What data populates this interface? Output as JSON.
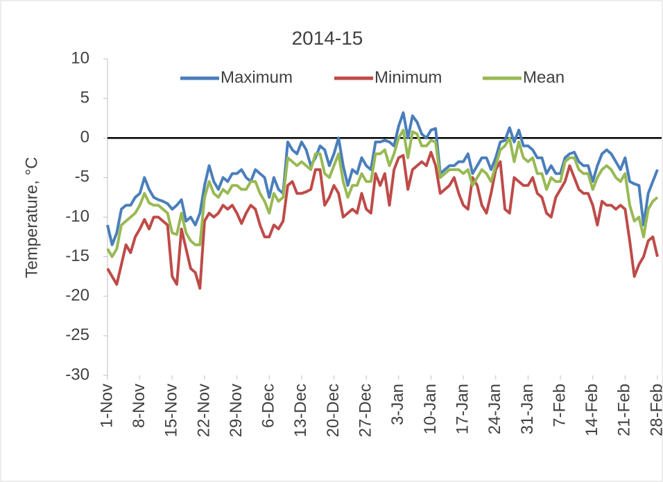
{
  "chart_data": {
    "type": "line",
    "title": "2014-15",
    "y_label": "Temperature, °C",
    "categories": [
      "1-Nov",
      null,
      null,
      null,
      null,
      null,
      null,
      "8-Nov",
      null,
      null,
      null,
      null,
      null,
      null,
      "15-Nov",
      null,
      null,
      null,
      null,
      null,
      null,
      "22-Nov",
      null,
      null,
      null,
      null,
      null,
      null,
      "29-Nov",
      null,
      null,
      null,
      null,
      null,
      null,
      "6-Dec",
      null,
      null,
      null,
      null,
      null,
      null,
      "13-Dec",
      null,
      null,
      null,
      null,
      null,
      null,
      "20-Dec",
      null,
      null,
      null,
      null,
      null,
      null,
      "27-Dec",
      null,
      null,
      null,
      null,
      null,
      null,
      "3-Jan",
      null,
      null,
      null,
      null,
      null,
      null,
      "10-Jan",
      null,
      null,
      null,
      null,
      null,
      null,
      "17-Jan",
      null,
      null,
      null,
      null,
      null,
      null,
      "24-Jan",
      null,
      null,
      null,
      null,
      null,
      null,
      "31-Jan",
      null,
      null,
      null,
      null,
      null,
      null,
      "7-Feb",
      null,
      null,
      null,
      null,
      null,
      null,
      "14-Feb",
      null,
      null,
      null,
      null,
      null,
      null,
      "21-Feb",
      null,
      null,
      null,
      null,
      null,
      null,
      "28-Feb"
    ],
    "series": [
      {
        "name": "Maximum",
        "color": "#4a7ebb",
        "values": [
          -11,
          -13.5,
          -12,
          -9,
          -8.5,
          -8.5,
          -7.5,
          -7,
          -5,
          -6.5,
          -7.5,
          -7.8,
          -8,
          -8.3,
          -9,
          -8.5,
          -7.8,
          -10.5,
          -10,
          -11,
          -9.5,
          -6,
          -3.5,
          -5.5,
          -6.5,
          -5,
          -5.5,
          -4.5,
          -4.5,
          -4,
          -5,
          -5.5,
          -4,
          -4.5,
          -5,
          -7.5,
          -5,
          -6.5,
          -7,
          -0.5,
          -1.5,
          -2,
          -0.5,
          -1.5,
          -3.5,
          -2.5,
          -1,
          -1.5,
          -3.5,
          -2,
          0,
          -3.5,
          -6,
          -4,
          -4.5,
          -2.5,
          -3.5,
          -4,
          -0.5,
          -0.5,
          -0.3,
          -0.5,
          -1,
          1.5,
          3.2,
          0,
          2.8,
          2,
          0.5,
          0,
          1,
          1.2,
          -4.5,
          -4,
          -3.5,
          -3.5,
          -3,
          -3,
          -2,
          -4.5,
          -3.5,
          -2.5,
          -2.5,
          -4,
          -2.5,
          -0.5,
          -0.3,
          1.3,
          -0.5,
          1,
          -1,
          -1,
          -1.5,
          -2.5,
          -2.5,
          -4.5,
          -3.5,
          -4.5,
          -4.5,
          -2.5,
          -2,
          -1.8,
          -3,
          -3.5,
          -3.5,
          -5.5,
          -3.5,
          -2,
          -1.5,
          -2,
          -3,
          -4,
          -2.5,
          -5.5,
          -5.8,
          -6,
          -11,
          -7,
          -5.5,
          -4
        ]
      },
      {
        "name": "Minimum",
        "color": "#be4b48",
        "values": [
          -16.5,
          -17.5,
          -18.5,
          -16,
          -13.5,
          -14.5,
          -12.5,
          -11.5,
          -10.3,
          -11.5,
          -10,
          -10,
          -10.5,
          -11,
          -17.5,
          -18.5,
          -11.5,
          -14,
          -16.5,
          -17,
          -19,
          -10.5,
          -9.5,
          -10,
          -9.5,
          -8.5,
          -9,
          -8.5,
          -9.5,
          -10.8,
          -9.5,
          -8.5,
          -9,
          -11,
          -12.5,
          -12.5,
          -11,
          -11.5,
          -10.5,
          -6,
          -5.5,
          -7,
          -7,
          -6.8,
          -6.5,
          -4,
          -4,
          -8.5,
          -7.5,
          -6,
          -7,
          -10,
          -9.5,
          -9,
          -9.5,
          -7,
          -9,
          -9.5,
          -4.5,
          -6,
          -4.5,
          -8.5,
          -4,
          -2.5,
          -2.2,
          -6.5,
          -4,
          -3.5,
          -3,
          -3.5,
          -1.8,
          -3.5,
          -7,
          -6.5,
          -6,
          -5,
          -7,
          -8.5,
          -9,
          -5,
          -6,
          -8.5,
          -9.5,
          -7,
          -4,
          -3,
          -9,
          -9.5,
          -5,
          -5.5,
          -6,
          -6,
          -5,
          -7,
          -7.5,
          -9.5,
          -10,
          -7.5,
          -6.5,
          -5.5,
          -3.5,
          -5,
          -6.5,
          -7,
          -7,
          -8.5,
          -11,
          -8,
          -8.5,
          -8.5,
          -9,
          -8.5,
          -9,
          -13,
          -17.5,
          -16,
          -15,
          -13,
          -12.5,
          -15
        ]
      },
      {
        "name": "Mean",
        "color": "#98b954",
        "values": [
          -14,
          -15,
          -14,
          -11,
          -10.5,
          -10,
          -9.5,
          -8.5,
          -7,
          -8.2,
          -8.5,
          -8.5,
          -9,
          -9.5,
          -12,
          -12.2,
          -9.5,
          -12,
          -13,
          -13.5,
          -13.5,
          -7.5,
          -5.5,
          -7,
          -7.5,
          -6.5,
          -7,
          -6,
          -6,
          -6.5,
          -6.5,
          -5.5,
          -5.5,
          -7,
          -8,
          -9.5,
          -7,
          -8,
          -7.5,
          -2.5,
          -3,
          -3.5,
          -3,
          -3.5,
          -4,
          -2,
          -2,
          -4.5,
          -5,
          -3.5,
          -2,
          -5.5,
          -7.5,
          -6,
          -6,
          -4.5,
          -5.5,
          -5.5,
          -2,
          -2,
          -1.5,
          -3.5,
          -2,
          0,
          1,
          -2.5,
          0.8,
          0.5,
          -1,
          -1,
          -0.3,
          -0.5,
          -5,
          -4.5,
          -4,
          -4,
          -4,
          -4.5,
          -4,
          -6,
          -5,
          -4,
          -4.5,
          -5.5,
          -3.5,
          -1.5,
          -1,
          0,
          -3,
          -0.5,
          -2.5,
          -3,
          -2.5,
          -4.5,
          -4.5,
          -6.5,
          -5,
          -5.5,
          -5.5,
          -3,
          -2.5,
          -2.5,
          -4,
          -4.5,
          -4.5,
          -6.5,
          -5,
          -4,
          -3.5,
          -4,
          -5,
          -5.5,
          -4.5,
          -8.5,
          -10.5,
          -10,
          -12.5,
          -9,
          -8,
          -7.5
        ]
      }
    ],
    "ylim": [
      -30,
      10
    ],
    "yticks": [
      -30,
      -25,
      -20,
      -15,
      -10,
      -5,
      0,
      5,
      10
    ],
    "legend": "top"
  }
}
